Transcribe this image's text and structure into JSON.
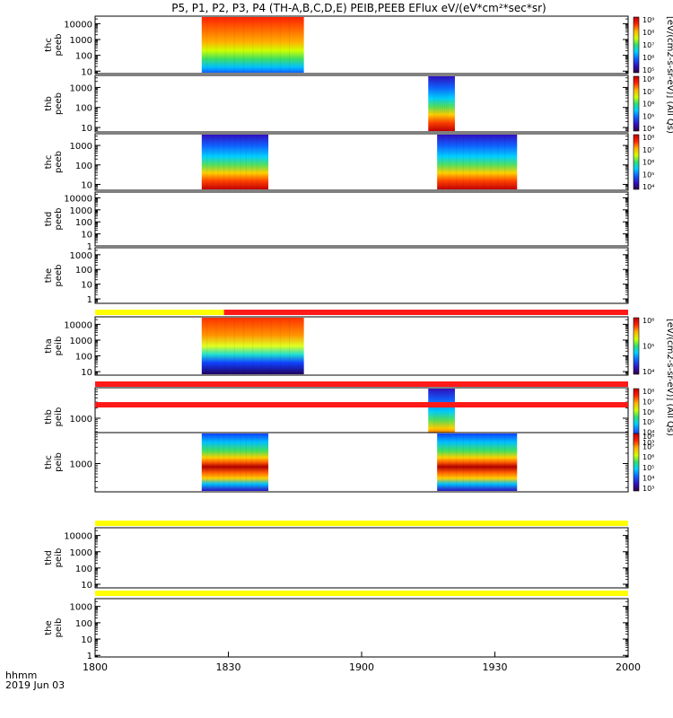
{
  "title": "P5, P1, P2, P3, P4 (TH-A,B,C,D,E) PEIB,PEEB EFlux eV/(eV*cm²*sec*sr)",
  "x_axis": {
    "label_line1": "hhmm",
    "label_line2": "2019 Jun 03",
    "ticks": [
      "1800",
      "1830",
      "1900",
      "1930",
      "2000"
    ]
  },
  "colorbar_labels": {
    "electrons": "[eV/(cm2-s-sr-eV)] (All Qs)",
    "ions": "[eV/(cm2-s-sr-eV)] (All Qs)"
  },
  "chart_data": {
    "type": "heatmap",
    "x_range_hhmm": [
      "1800",
      "2000"
    ],
    "panels": [
      {
        "name": "thc peeb",
        "label1": "thc",
        "label2": "peeb",
        "yscale": "log",
        "ylim": [
          7,
          30000
        ],
        "yticks": [
          "10",
          "100",
          "1000",
          "10000"
        ],
        "data_intervals": [
          [
            "1824",
            "1847"
          ]
        ],
        "colorbar_ticks": [
          "10⁵",
          "10⁶",
          "10⁷",
          "10⁸",
          "10⁹"
        ]
      },
      {
        "name": "thb peeb",
        "label1": "thb",
        "label2": "peeb",
        "yscale": "log",
        "ylim": [
          6,
          4000
        ],
        "yticks": [
          "10",
          "100",
          "1000"
        ],
        "data_intervals": [
          [
            "1915",
            "1921"
          ]
        ],
        "colorbar_ticks": [
          "10⁴",
          "10⁵",
          "10⁶",
          "10⁷",
          "10⁸"
        ]
      },
      {
        "name": "thc peeb (2)",
        "label1": "thc",
        "label2": "peeb",
        "yscale": "log",
        "ylim": [
          5,
          4000
        ],
        "yticks": [
          "10",
          "100",
          "1000"
        ],
        "data_intervals": [
          [
            "1824",
            "1839"
          ],
          [
            "1917",
            "1935"
          ]
        ],
        "colorbar_ticks": [
          "10⁴",
          "10⁵",
          "10⁶",
          "10⁷",
          "10⁸"
        ]
      },
      {
        "name": "thd peeb",
        "label1": "thd",
        "label2": "peeb",
        "yscale": "log",
        "ylim": [
          1,
          30000
        ],
        "yticks": [
          "1",
          "10",
          "100",
          "1000",
          "10000"
        ],
        "data_intervals": []
      },
      {
        "name": "the peeb",
        "label1": "the",
        "label2": "peeb",
        "yscale": "log",
        "ylim": [
          0.5,
          3000
        ],
        "yticks": [
          "1",
          "10",
          "100",
          "1000"
        ],
        "data_intervals": []
      },
      {
        "name": "tha peib",
        "label1": "tha",
        "label2": "peib",
        "yscale": "log",
        "ylim": [
          6,
          30000
        ],
        "yticks": [
          "10",
          "100",
          "1000",
          "10000"
        ],
        "data_intervals": [
          [
            "1824",
            "1847"
          ]
        ],
        "colorbar_ticks": [
          "10⁴",
          "10⁵",
          "10⁶"
        ]
      },
      {
        "name": "thb peib",
        "label1": "thb",
        "label2": "peib",
        "yscale": "log",
        "ylim": [
          150,
          8000
        ],
        "yticks": [
          "1000"
        ],
        "data_intervals": [
          [
            "1915",
            "1921"
          ]
        ],
        "colorbar_ticks": [
          "10³",
          "10⁴",
          "10⁵",
          "10⁶",
          "10⁷",
          "10⁸"
        ]
      },
      {
        "name": "thc peib",
        "label1": "thc",
        "label2": "peib",
        "yscale": "log",
        "ylim": [
          150,
          8000
        ],
        "yticks": [
          "1000"
        ],
        "data_intervals": [
          [
            "1824",
            "1839"
          ],
          [
            "1917",
            "1935"
          ]
        ],
        "colorbar_ticks": [
          "10³",
          "10⁴",
          "10⁵",
          "10⁶",
          "10⁷",
          "10⁸"
        ]
      },
      {
        "name": "thd peib",
        "label1": "thd",
        "label2": "peib",
        "yscale": "log",
        "ylim": [
          6,
          30000
        ],
        "yticks": [
          "10",
          "100",
          "1000",
          "10000"
        ],
        "data_intervals": []
      },
      {
        "name": "the peib",
        "label1": "the",
        "label2": "peib",
        "yscale": "log",
        "ylim": [
          0.8,
          3000
        ],
        "yticks": [
          "1",
          "10",
          "100",
          "1000"
        ],
        "data_intervals": []
      }
    ],
    "bars": [
      {
        "color": "#ff1a1a",
        "intervals": [
          [
            "1829",
            "2000"
          ]
        ],
        "secondary": {
          "color": "#ffff00",
          "intervals": [
            [
              "1800",
              "1829"
            ]
          ]
        }
      },
      {
        "color": "#ff1a1a",
        "intervals": [
          [
            "1800",
            "2000"
          ]
        ]
      },
      {
        "color": "#ff1a1a",
        "intervals": [
          [
            "1800",
            "2000"
          ]
        ]
      },
      {
        "color": "#ffff00",
        "intervals": [
          [
            "1800",
            "2000"
          ]
        ]
      },
      {
        "color": "#ffff00",
        "intervals": [
          [
            "1800",
            "2000"
          ]
        ]
      }
    ]
  }
}
